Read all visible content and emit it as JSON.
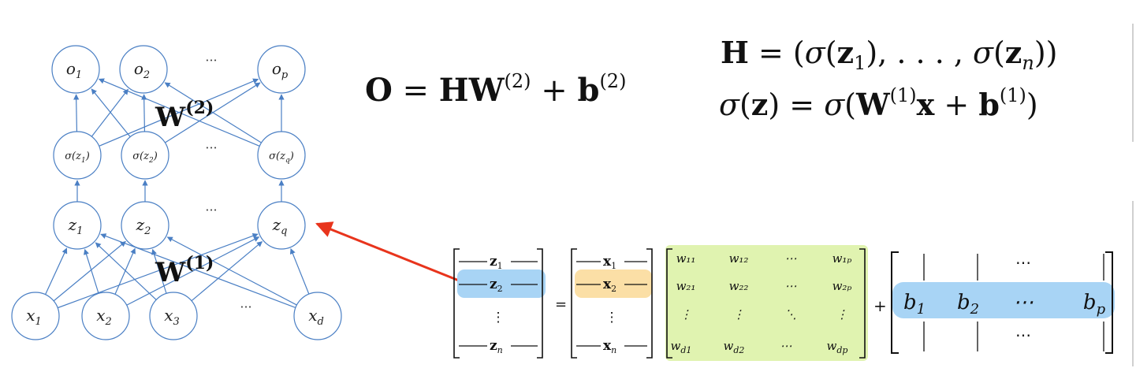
{
  "diagram": {
    "output_nodes": [
      {
        "base": "o",
        "sub": "1"
      },
      {
        "base": "o",
        "sub": "2"
      },
      {
        "base": "o",
        "sub": "p"
      }
    ],
    "activation_nodes": [
      {
        "text": "σ(z",
        "sub": "1",
        "close": ")"
      },
      {
        "text": "σ(z",
        "sub": "2",
        "close": ")"
      },
      {
        "text": "σ(z",
        "sub": "q",
        "close": ")"
      }
    ],
    "hidden_nodes": [
      {
        "base": "z",
        "sub": "1"
      },
      {
        "base": "z",
        "sub": "2"
      },
      {
        "base": "z",
        "sub": "q"
      }
    ],
    "input_nodes": [
      {
        "base": "x",
        "sub": "1"
      },
      {
        "base": "x",
        "sub": "2"
      },
      {
        "base": "x",
        "sub": "3"
      },
      {
        "base": "x",
        "sub": "d"
      }
    ],
    "ellipsis": "···",
    "weight_top": {
      "base": "W",
      "sup": "(2)"
    },
    "weight_bottom": {
      "base": "W",
      "sup": "(1)"
    }
  },
  "equations": {
    "output": {
      "lhs": "O",
      "eq": " = ",
      "h": "H",
      "w": "W",
      "w_sup": "(2)",
      "plus": " + ",
      "b": "b",
      "b_sup": "(2)"
    },
    "hidden": {
      "lhs": "H",
      "eq": " = (",
      "sigma": "σ",
      "open": "(",
      "z": "z",
      "sub1": "1",
      "mid": "), . . . , ",
      "sigma2": "σ",
      "open2": "(",
      "z2": "z",
      "subn": "n",
      "close": "))"
    },
    "activation": {
      "sigma": "σ",
      "open": "(",
      "z": "z",
      "close": ")",
      "eq": " = ",
      "sigma2": "σ",
      "open2": "(",
      "w": "W",
      "w_sup": "(1)",
      "x": "x",
      "plus": " + ",
      "b": "b",
      "b_sup": "(1)",
      "close2": ")"
    }
  },
  "matrix_eq": {
    "z_rows": [
      {
        "v": "z",
        "sub": "1"
      },
      {
        "v": "z",
        "sub": "2"
      },
      {
        "v": "⋮",
        "sub": ""
      },
      {
        "v": "z",
        "sub": "n"
      }
    ],
    "x_rows": [
      {
        "v": "x",
        "sub": "1"
      },
      {
        "v": "x",
        "sub": "2"
      },
      {
        "v": "⋮",
        "sub": ""
      },
      {
        "v": "x",
        "sub": "n"
      }
    ],
    "w_rows": [
      [
        "w₁₁",
        "w₁₂",
        "⋯",
        "w₁ₚ"
      ],
      [
        "w₂₁",
        "w₂₂",
        "⋯",
        "w₂ₚ"
      ],
      [
        "⋮",
        "⋮",
        "⋱",
        "⋮"
      ],
      [
        "w_d1",
        "w_d2",
        "⋯",
        "w_dp"
      ]
    ],
    "w_last_row": [
      {
        "base": "w",
        "sub": "d1"
      },
      {
        "base": "w",
        "sub": "d2"
      },
      {
        "base": "⋯",
        "sub": ""
      },
      {
        "base": "w",
        "sub": "dp"
      }
    ],
    "equals": "=",
    "plus": "+",
    "b_row": [
      {
        "base": "b",
        "sub": "1"
      },
      {
        "base": "b",
        "sub": "2"
      },
      {
        "base": "⋯",
        "sub": ""
      },
      {
        "base": "b",
        "sub": "p"
      }
    ],
    "b_dots": "⋯",
    "colors": {
      "z_highlight": "#a8d4f5",
      "x_highlight": "#fbdfa6",
      "w_highlight": "#e0f3b0",
      "b_highlight": "#a8d4f5",
      "arrow": "#e8341c",
      "edge": "#4a7fc4",
      "node_stroke": "#4a7fc4"
    }
  }
}
